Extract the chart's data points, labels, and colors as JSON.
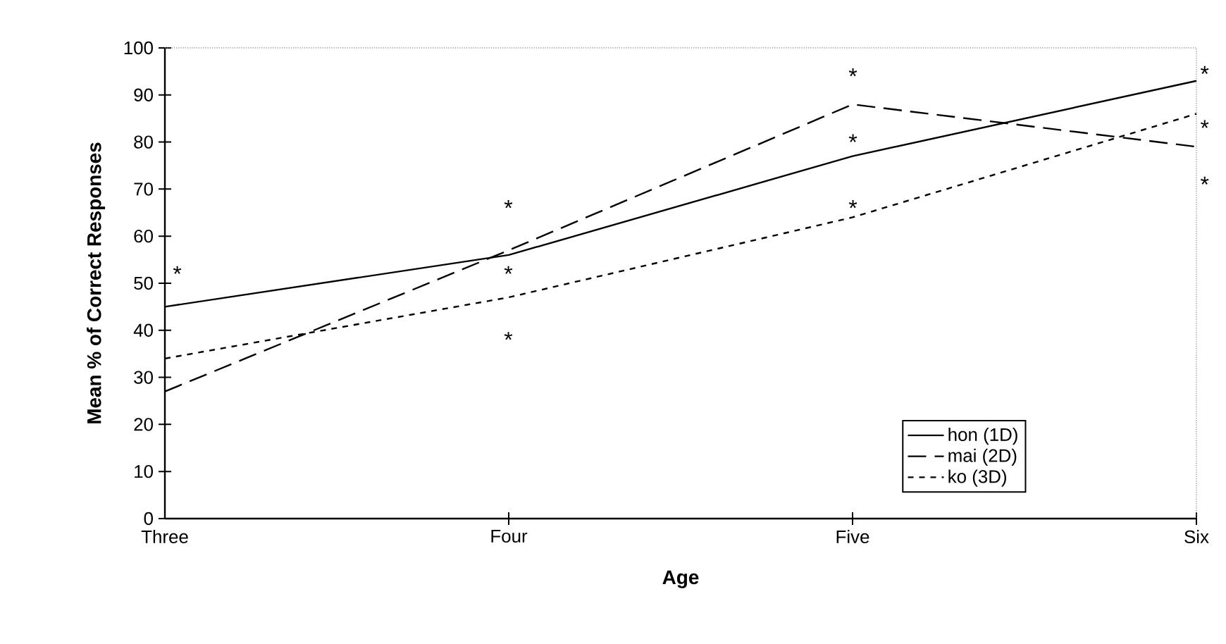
{
  "chart_data": {
    "type": "line",
    "xlabel": "Age",
    "ylabel": "Mean % of Correct Responses",
    "categories": [
      "Three",
      "Four",
      "Five",
      "Six"
    ],
    "series": [
      {
        "name": "hon (1D)",
        "color": "#000000",
        "line_style": "solid",
        "values": [
          45,
          56,
          77,
          93
        ]
      },
      {
        "name": "mai (2D)",
        "color": "#000000",
        "line_style": "dashed",
        "values": [
          27,
          57,
          88,
          79
        ]
      },
      {
        "name": "ko (3D)",
        "color": "#000000",
        "line_style": "dotted",
        "values": [
          34,
          47,
          64,
          86
        ]
      }
    ],
    "ylim": [
      0,
      100
    ],
    "yticks": [
      0,
      10,
      20,
      30,
      40,
      50,
      60,
      70,
      80,
      90,
      100
    ],
    "marker": "none",
    "legend": "bottom right",
    "grid": false,
    "annotations": [
      "*",
      "*",
      "*",
      "*",
      "*",
      "*",
      "*",
      "*",
      "*",
      "*"
    ]
  }
}
